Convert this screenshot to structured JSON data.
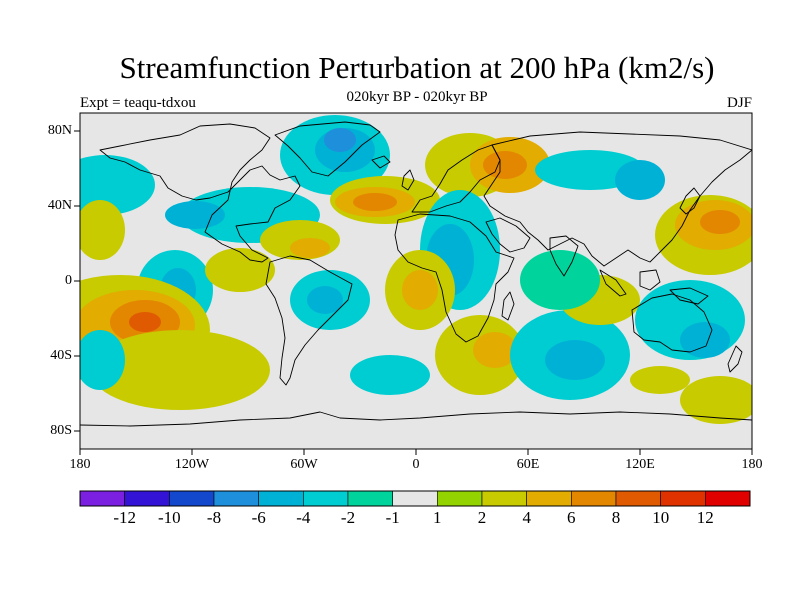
{
  "header": {
    "title": "Streamfunction Perturbation at 200 hPa (km2/s)",
    "subtitle": "020kyr BP - 020kyr BP",
    "left_label": "Expt = teaqu-tdxou",
    "right_label": "DJF"
  },
  "axes": {
    "lat_labels": [
      "80N",
      "40N",
      "0",
      "40S",
      "80S"
    ],
    "lon_labels": [
      "180",
      "120W",
      "60W",
      "0",
      "60E",
      "120E",
      "180"
    ]
  },
  "colorbar": {
    "colors": [
      "#7b1fe0",
      "#3314d6",
      "#1448cc",
      "#1e8fdb",
      "#00b1d6",
      "#00cdd1",
      "#00d39c",
      "#e6e6e6",
      "#93d300",
      "#c7cb00",
      "#e2ac00",
      "#e38600",
      "#df5a00",
      "#e03200",
      "#e00000"
    ],
    "labels": [
      "-12",
      "-10",
      "-8",
      "-6",
      "-4",
      "-2",
      "-1",
      "1",
      "2",
      "4",
      "6",
      "8",
      "10",
      "12"
    ]
  },
  "field": {
    "background_color": "#e6e6e6",
    "land_outline_color": "#000000"
  }
}
